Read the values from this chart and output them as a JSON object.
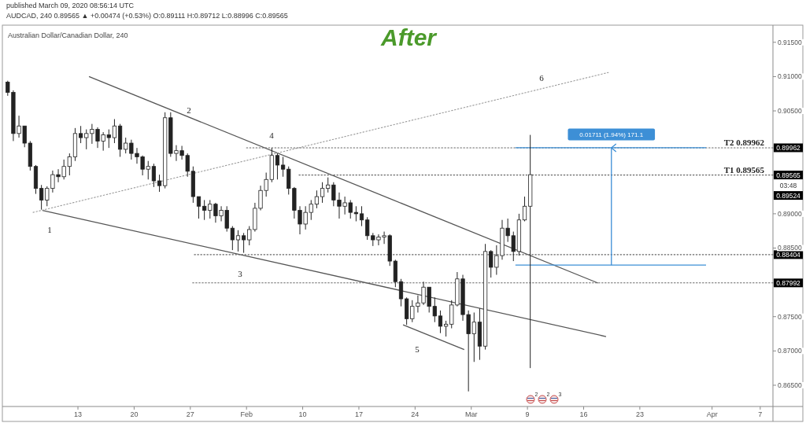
{
  "chart_data": {
    "type": "candlestick",
    "title": "After",
    "subtitle": "Australian Dollar/Canadian Dollar, 240",
    "color": "#222222",
    "xlim": [
      "2020-01-03T14:00",
      "2020-04-08T14:00"
    ],
    "xticks": [
      {
        "value": "2020-01-13",
        "label": "13"
      },
      {
        "value": "2020-01-20",
        "label": "20"
      },
      {
        "value": "2020-01-27",
        "label": "27"
      },
      {
        "value": "2020-02-03",
        "label": "Feb"
      },
      {
        "value": "2020-02-10",
        "label": "10"
      },
      {
        "value": "2020-02-17",
        "label": "17"
      },
      {
        "value": "2020-02-24",
        "label": "24"
      },
      {
        "value": "2020-03-02",
        "label": "Mar"
      },
      {
        "value": "2020-03-09",
        "label": "9"
      },
      {
        "value": "2020-03-16",
        "label": "16"
      },
      {
        "value": "2020-03-23",
        "label": "23"
      },
      {
        "value": "2020-04-01",
        "label": "Apr"
      },
      {
        "value": "2020-04-07",
        "label": "7"
      }
    ],
    "ylim": [
      0.8619,
      0.9175
    ],
    "yticks": [
      {
        "value": 0.865,
        "label": "0.86500"
      },
      {
        "value": 0.87,
        "label": "0.87000"
      },
      {
        "value": 0.875,
        "label": "0.87500"
      },
      {
        "value": 0.885,
        "label": "0.88500"
      },
      {
        "value": 0.89,
        "label": "0.89000"
      },
      {
        "value": 0.905,
        "label": "0.90500"
      },
      {
        "value": 0.91,
        "label": "0.91000"
      },
      {
        "value": 0.915,
        "label": "0.91500"
      }
    ],
    "x": [
      "2020-01-04T06:00",
      "2020-01-04T22:48",
      "2020-01-05T15:36",
      "2020-01-06T08:24",
      "2020-01-07T01:12",
      "2020-01-07T18:00",
      "2020-01-08T10:48",
      "2020-01-09T03:36",
      "2020-01-09T20:24",
      "2020-01-10T13:12",
      "2020-01-11T06:00",
      "2020-01-11T22:48",
      "2020-01-12T15:36",
      "2020-01-13T08:24",
      "2020-01-14T01:12",
      "2020-01-14T18:00",
      "2020-01-15T10:48",
      "2020-01-16T03:36",
      "2020-01-16T20:24",
      "2020-01-17T13:12",
      "2020-01-18T06:00",
      "2020-01-18T22:48",
      "2020-01-19T15:36",
      "2020-01-20T08:24",
      "2020-01-21T01:12",
      "2020-01-21T18:00",
      "2020-01-22T10:48",
      "2020-01-23T03:36",
      "2020-01-23T20:24",
      "2020-01-24T13:12",
      "2020-01-25T06:00",
      "2020-01-25T22:48",
      "2020-01-26T15:36",
      "2020-01-27T08:24",
      "2020-01-28T01:12",
      "2020-01-28T18:00",
      "2020-01-29T10:48",
      "2020-01-30T03:36",
      "2020-01-30T20:24",
      "2020-01-31T13:12",
      "2020-02-01T06:00",
      "2020-02-01T22:48",
      "2020-02-02T15:36",
      "2020-02-03T08:24",
      "2020-02-04T01:12",
      "2020-02-04T18:00",
      "2020-02-05T10:48",
      "2020-02-06T03:36",
      "2020-02-06T20:24",
      "2020-02-07T13:12",
      "2020-02-08T06:00",
      "2020-02-08T22:48",
      "2020-02-09T15:36",
      "2020-02-10T08:24",
      "2020-02-11T01:12",
      "2020-02-11T18:00",
      "2020-02-12T10:48",
      "2020-02-13T03:36",
      "2020-02-13T20:24",
      "2020-02-14T13:12",
      "2020-02-15T06:00",
      "2020-02-15T22:48",
      "2020-02-16T15:36",
      "2020-02-17T08:24",
      "2020-02-18T01:12",
      "2020-02-18T18:00",
      "2020-02-19T10:48",
      "2020-02-20T03:36",
      "2020-02-20T20:24",
      "2020-02-21T13:12",
      "2020-02-22T06:00",
      "2020-02-22T22:48",
      "2020-02-23T15:36",
      "2020-02-24T08:24",
      "2020-02-25T01:12",
      "2020-02-25T18:00",
      "2020-02-26T10:48",
      "2020-02-27T03:36",
      "2020-02-27T20:24",
      "2020-02-28T13:12",
      "2020-02-29T06:00",
      "2020-02-29T22:48",
      "2020-03-01T15:36",
      "2020-03-02T08:24",
      "2020-03-03T01:12",
      "2020-03-03T18:00",
      "2020-03-04T10:48",
      "2020-03-05T03:36",
      "2020-03-05T20:24",
      "2020-03-06T13:12",
      "2020-03-07T06:00",
      "2020-03-07T22:48",
      "2020-03-08T15:36",
      "2020-03-09T08:24"
    ],
    "ohlc": [
      [
        0.9092,
        0.9094,
        0.9072,
        0.9077
      ],
      [
        0.9077,
        0.908,
        0.9006,
        0.9017
      ],
      [
        0.9017,
        0.9043,
        0.9011,
        0.9028
      ],
      [
        0.9028,
        0.9028,
        0.8997,
        0.9003
      ],
      [
        0.9003,
        0.9006,
        0.8963,
        0.8969
      ],
      [
        0.8969,
        0.8971,
        0.8929,
        0.8937
      ],
      [
        0.8937,
        0.8942,
        0.8906,
        0.892
      ],
      [
        0.892,
        0.894,
        0.8911,
        0.8937
      ],
      [
        0.8937,
        0.8963,
        0.8931,
        0.8957
      ],
      [
        0.8957,
        0.8965,
        0.8946,
        0.8954
      ],
      [
        0.8954,
        0.8979,
        0.895,
        0.8969
      ],
      [
        0.8969,
        0.8988,
        0.8956,
        0.8983
      ],
      [
        0.8983,
        0.9025,
        0.8977,
        0.9017
      ],
      [
        0.9017,
        0.9028,
        0.9003,
        0.9011
      ],
      [
        0.9011,
        0.9023,
        0.8994,
        0.9017
      ],
      [
        0.9017,
        0.9031,
        0.9002,
        0.9023
      ],
      [
        0.9023,
        0.9026,
        0.8996,
        0.9006
      ],
      [
        0.9006,
        0.9019,
        0.8992,
        0.9015
      ],
      [
        0.9015,
        0.9023,
        0.8996,
        0.9011
      ],
      [
        0.9011,
        0.9038,
        0.9003,
        0.9028
      ],
      [
        0.9028,
        0.9031,
        0.8983,
        0.8994
      ],
      [
        0.8994,
        0.9011,
        0.8988,
        0.9003
      ],
      [
        0.9003,
        0.9008,
        0.8979,
        0.8988
      ],
      [
        0.8988,
        0.8996,
        0.8973,
        0.8983
      ],
      [
        0.8983,
        0.8985,
        0.8956,
        0.8965
      ],
      [
        0.8965,
        0.8977,
        0.895,
        0.8969
      ],
      [
        0.8969,
        0.8973,
        0.8939,
        0.8948
      ],
      [
        0.8948,
        0.8957,
        0.8932,
        0.8941
      ],
      [
        0.8941,
        0.9048,
        0.8937,
        0.904
      ],
      [
        0.904,
        0.9048,
        0.8983,
        0.8988
      ],
      [
        0.8988,
        0.9,
        0.8977,
        0.8992
      ],
      [
        0.8992,
        0.8999,
        0.8979,
        0.8985
      ],
      [
        0.8985,
        0.8988,
        0.8954,
        0.8962
      ],
      [
        0.8962,
        0.8969,
        0.8916,
        0.8925
      ],
      [
        0.8925,
        0.8925,
        0.8893,
        0.8911
      ],
      [
        0.8911,
        0.892,
        0.8891,
        0.8905
      ],
      [
        0.8905,
        0.892,
        0.8893,
        0.8914
      ],
      [
        0.8914,
        0.8916,
        0.8887,
        0.8897
      ],
      [
        0.8897,
        0.8911,
        0.8889,
        0.8905
      ],
      [
        0.8905,
        0.8911,
        0.8874,
        0.8879
      ],
      [
        0.8879,
        0.8882,
        0.8847,
        0.8862
      ],
      [
        0.8862,
        0.8876,
        0.8845,
        0.8868
      ],
      [
        0.8868,
        0.8872,
        0.8843,
        0.8862
      ],
      [
        0.8862,
        0.8882,
        0.8854,
        0.8877
      ],
      [
        0.8877,
        0.8916,
        0.8874,
        0.8908
      ],
      [
        0.8908,
        0.8941,
        0.8905,
        0.8934
      ],
      [
        0.8934,
        0.896,
        0.8925,
        0.895
      ],
      [
        0.895,
        0.8996,
        0.8946,
        0.8985
      ],
      [
        0.8985,
        0.8988,
        0.895,
        0.8971
      ],
      [
        0.8971,
        0.8983,
        0.8954,
        0.8965
      ],
      [
        0.8965,
        0.8969,
        0.8928,
        0.8937
      ],
      [
        0.8937,
        0.8939,
        0.8893,
        0.8905
      ],
      [
        0.8905,
        0.8911,
        0.887,
        0.8885
      ],
      [
        0.8885,
        0.8911,
        0.8877,
        0.8902
      ],
      [
        0.8902,
        0.892,
        0.8891,
        0.8914
      ],
      [
        0.8914,
        0.8934,
        0.8908,
        0.8925
      ],
      [
        0.8925,
        0.8946,
        0.8916,
        0.8937
      ],
      [
        0.8937,
        0.8953,
        0.8931,
        0.8942
      ],
      [
        0.8942,
        0.8946,
        0.8911,
        0.892
      ],
      [
        0.892,
        0.8931,
        0.8893,
        0.8911
      ],
      [
        0.8911,
        0.8925,
        0.8899,
        0.8916
      ],
      [
        0.8916,
        0.892,
        0.8893,
        0.8902
      ],
      [
        0.8902,
        0.8911,
        0.8889,
        0.89
      ],
      [
        0.89,
        0.8911,
        0.8882,
        0.8891
      ],
      [
        0.8891,
        0.8895,
        0.8862,
        0.8868
      ],
      [
        0.8868,
        0.8872,
        0.8853,
        0.8862
      ],
      [
        0.8862,
        0.887,
        0.8854,
        0.8866
      ],
      [
        0.8866,
        0.8874,
        0.8856,
        0.8868
      ],
      [
        0.8868,
        0.887,
        0.8824,
        0.8831
      ],
      [
        0.8831,
        0.8833,
        0.8793,
        0.8801
      ],
      [
        0.8801,
        0.8805,
        0.8765,
        0.8776
      ],
      [
        0.8776,
        0.8778,
        0.8738,
        0.8747
      ],
      [
        0.8747,
        0.8774,
        0.8742,
        0.8765
      ],
      [
        0.8765,
        0.8781,
        0.8756,
        0.877
      ],
      [
        0.877,
        0.8801,
        0.8767,
        0.8793
      ],
      [
        0.8793,
        0.8793,
        0.8756,
        0.8765
      ],
      [
        0.8765,
        0.8778,
        0.8742,
        0.8751
      ],
      [
        0.8751,
        0.8759,
        0.8726,
        0.8736
      ],
      [
        0.8736,
        0.8744,
        0.8721,
        0.8739
      ],
      [
        0.8739,
        0.8774,
        0.8733,
        0.8767
      ],
      [
        0.8767,
        0.8815,
        0.8765,
        0.8805
      ],
      [
        0.8805,
        0.8811,
        0.8744,
        0.8753
      ],
      [
        0.8753,
        0.8759,
        0.8641,
        0.8725
      ],
      [
        0.8725,
        0.8756,
        0.8684,
        0.8742
      ],
      [
        0.8742,
        0.8762,
        0.8687,
        0.8707
      ],
      [
        0.8707,
        0.8856,
        0.8702,
        0.8845
      ],
      [
        0.8845,
        0.8847,
        0.8807,
        0.8822
      ],
      [
        0.8822,
        0.8854,
        0.8811,
        0.8839
      ],
      [
        0.8839,
        0.8891,
        0.8833,
        0.8879
      ],
      [
        0.8879,
        0.8893,
        0.8859,
        0.8868
      ],
      [
        0.8868,
        0.8874,
        0.8831,
        0.8845
      ],
      [
        0.8845,
        0.89,
        0.8839,
        0.8891
      ],
      [
        0.8891,
        0.8925,
        0.8889,
        0.8911
      ],
      [
        0.8911,
        0.9015,
        0.8675,
        0.8957
      ]
    ],
    "series": [
      {
        "type": "line",
        "color": "#555555",
        "line_style": "solid",
        "x": [
          "2020-01-14T09:00",
          "2020-03-17T19:00"
        ],
        "values": [
          0.91,
          0.8799
        ]
      },
      {
        "type": "line",
        "color": "#555555",
        "line_style": "solid",
        "x": [
          "2020-01-08T14:00",
          "2020-03-18T19:00"
        ],
        "values": [
          0.8905,
          0.8721
        ]
      },
      {
        "type": "line",
        "color": "#999999",
        "line_style": "dotted",
        "x": [
          "2020-01-07T10:00",
          "2020-03-19T02:00"
        ],
        "values": [
          0.8902,
          0.9106
        ]
      },
      {
        "type": "line",
        "color": "#555555",
        "line_style": "solid",
        "x": [
          "2020-02-22T12:00",
          "2020-03-01T03:00"
        ],
        "values": [
          0.8738,
          0.8702
        ]
      },
      {
        "type": "line",
        "color": "#666666",
        "line_style": "dotted",
        "x": [
          "2020-02-03T00:00",
          "2020-04-08T14:00"
        ],
        "values": [
          0.89962,
          0.89962
        ],
        "value_labels": [
          null,
          "0.89962"
        ]
      },
      {
        "type": "line",
        "color": "#666666",
        "line_style": "dotted",
        "x": [
          "2020-02-09T13:00",
          "2020-04-08T14:00"
        ],
        "values": [
          0.89565,
          0.89565
        ],
        "value_labels": [
          null,
          "0.89565"
        ]
      },
      {
        "type": "line",
        "color": "#666666",
        "line_style": "dotted",
        "x": [
          "2020-01-27T12:00",
          "2020-04-08T14:00"
        ],
        "values": [
          0.88404,
          0.88404
        ],
        "value_labels": [
          null,
          "0.88404"
        ]
      },
      {
        "type": "line",
        "color": "#666666",
        "line_style": "dotted",
        "x": [
          "2020-01-27T07:00",
          "2020-04-08T14:00"
        ],
        "values": [
          0.87992,
          0.87992
        ],
        "value_labels": [
          null,
          "0.87992"
        ]
      },
      {
        "type": "line",
        "color": "#3d8fd6",
        "line_style": "solid",
        "x": [
          "2020-03-07T12:00",
          "2020-03-31T06:00"
        ],
        "values": [
          0.89962,
          0.89962
        ]
      },
      {
        "type": "line",
        "color": "#3d8fd6",
        "line_style": "solid",
        "x": [
          "2020-03-07T12:00",
          "2020-03-31T06:00"
        ],
        "values": [
          0.88251,
          0.88251
        ]
      },
      {
        "type": "line",
        "color": "#3d8fd6",
        "line_style": "solid",
        "x": [
          "2020-03-19T11:00",
          "2020-03-19T11:00"
        ],
        "values": [
          0.88251,
          0.89962
        ]
      }
    ],
    "annotations": [
      "published March 09, 2020 08:56:14 UTC",
      "AUDCAD, 240 0.89565 ▲ +0.00474 (+0.53%) O:0.89111 H:0.89712 L:0.88996 C:0.89565",
      "2",
      "2",
      "3",
      "1",
      "2",
      "3",
      "4",
      "5",
      "6",
      {
        "text": "03:48",
        "x": "2020-04-08T14:00",
        "y": 0.89565
      },
      {
        "text": "T2 0.89962",
        "x": "2020-04-05T00:00",
        "y": 0.89962
      },
      {
        "text": "T1 0.89565",
        "x": "2020-04-05T00:00",
        "y": 0.89565
      },
      {
        "text": "0.01711 (1.94%) 171.1",
        "x": "2020-03-19T11:00",
        "y": 0.89962
      },
      {
        "text": "0.89524",
        "x": "2020-04-08T14:00",
        "y": 0.89524
      }
    ]
  }
}
